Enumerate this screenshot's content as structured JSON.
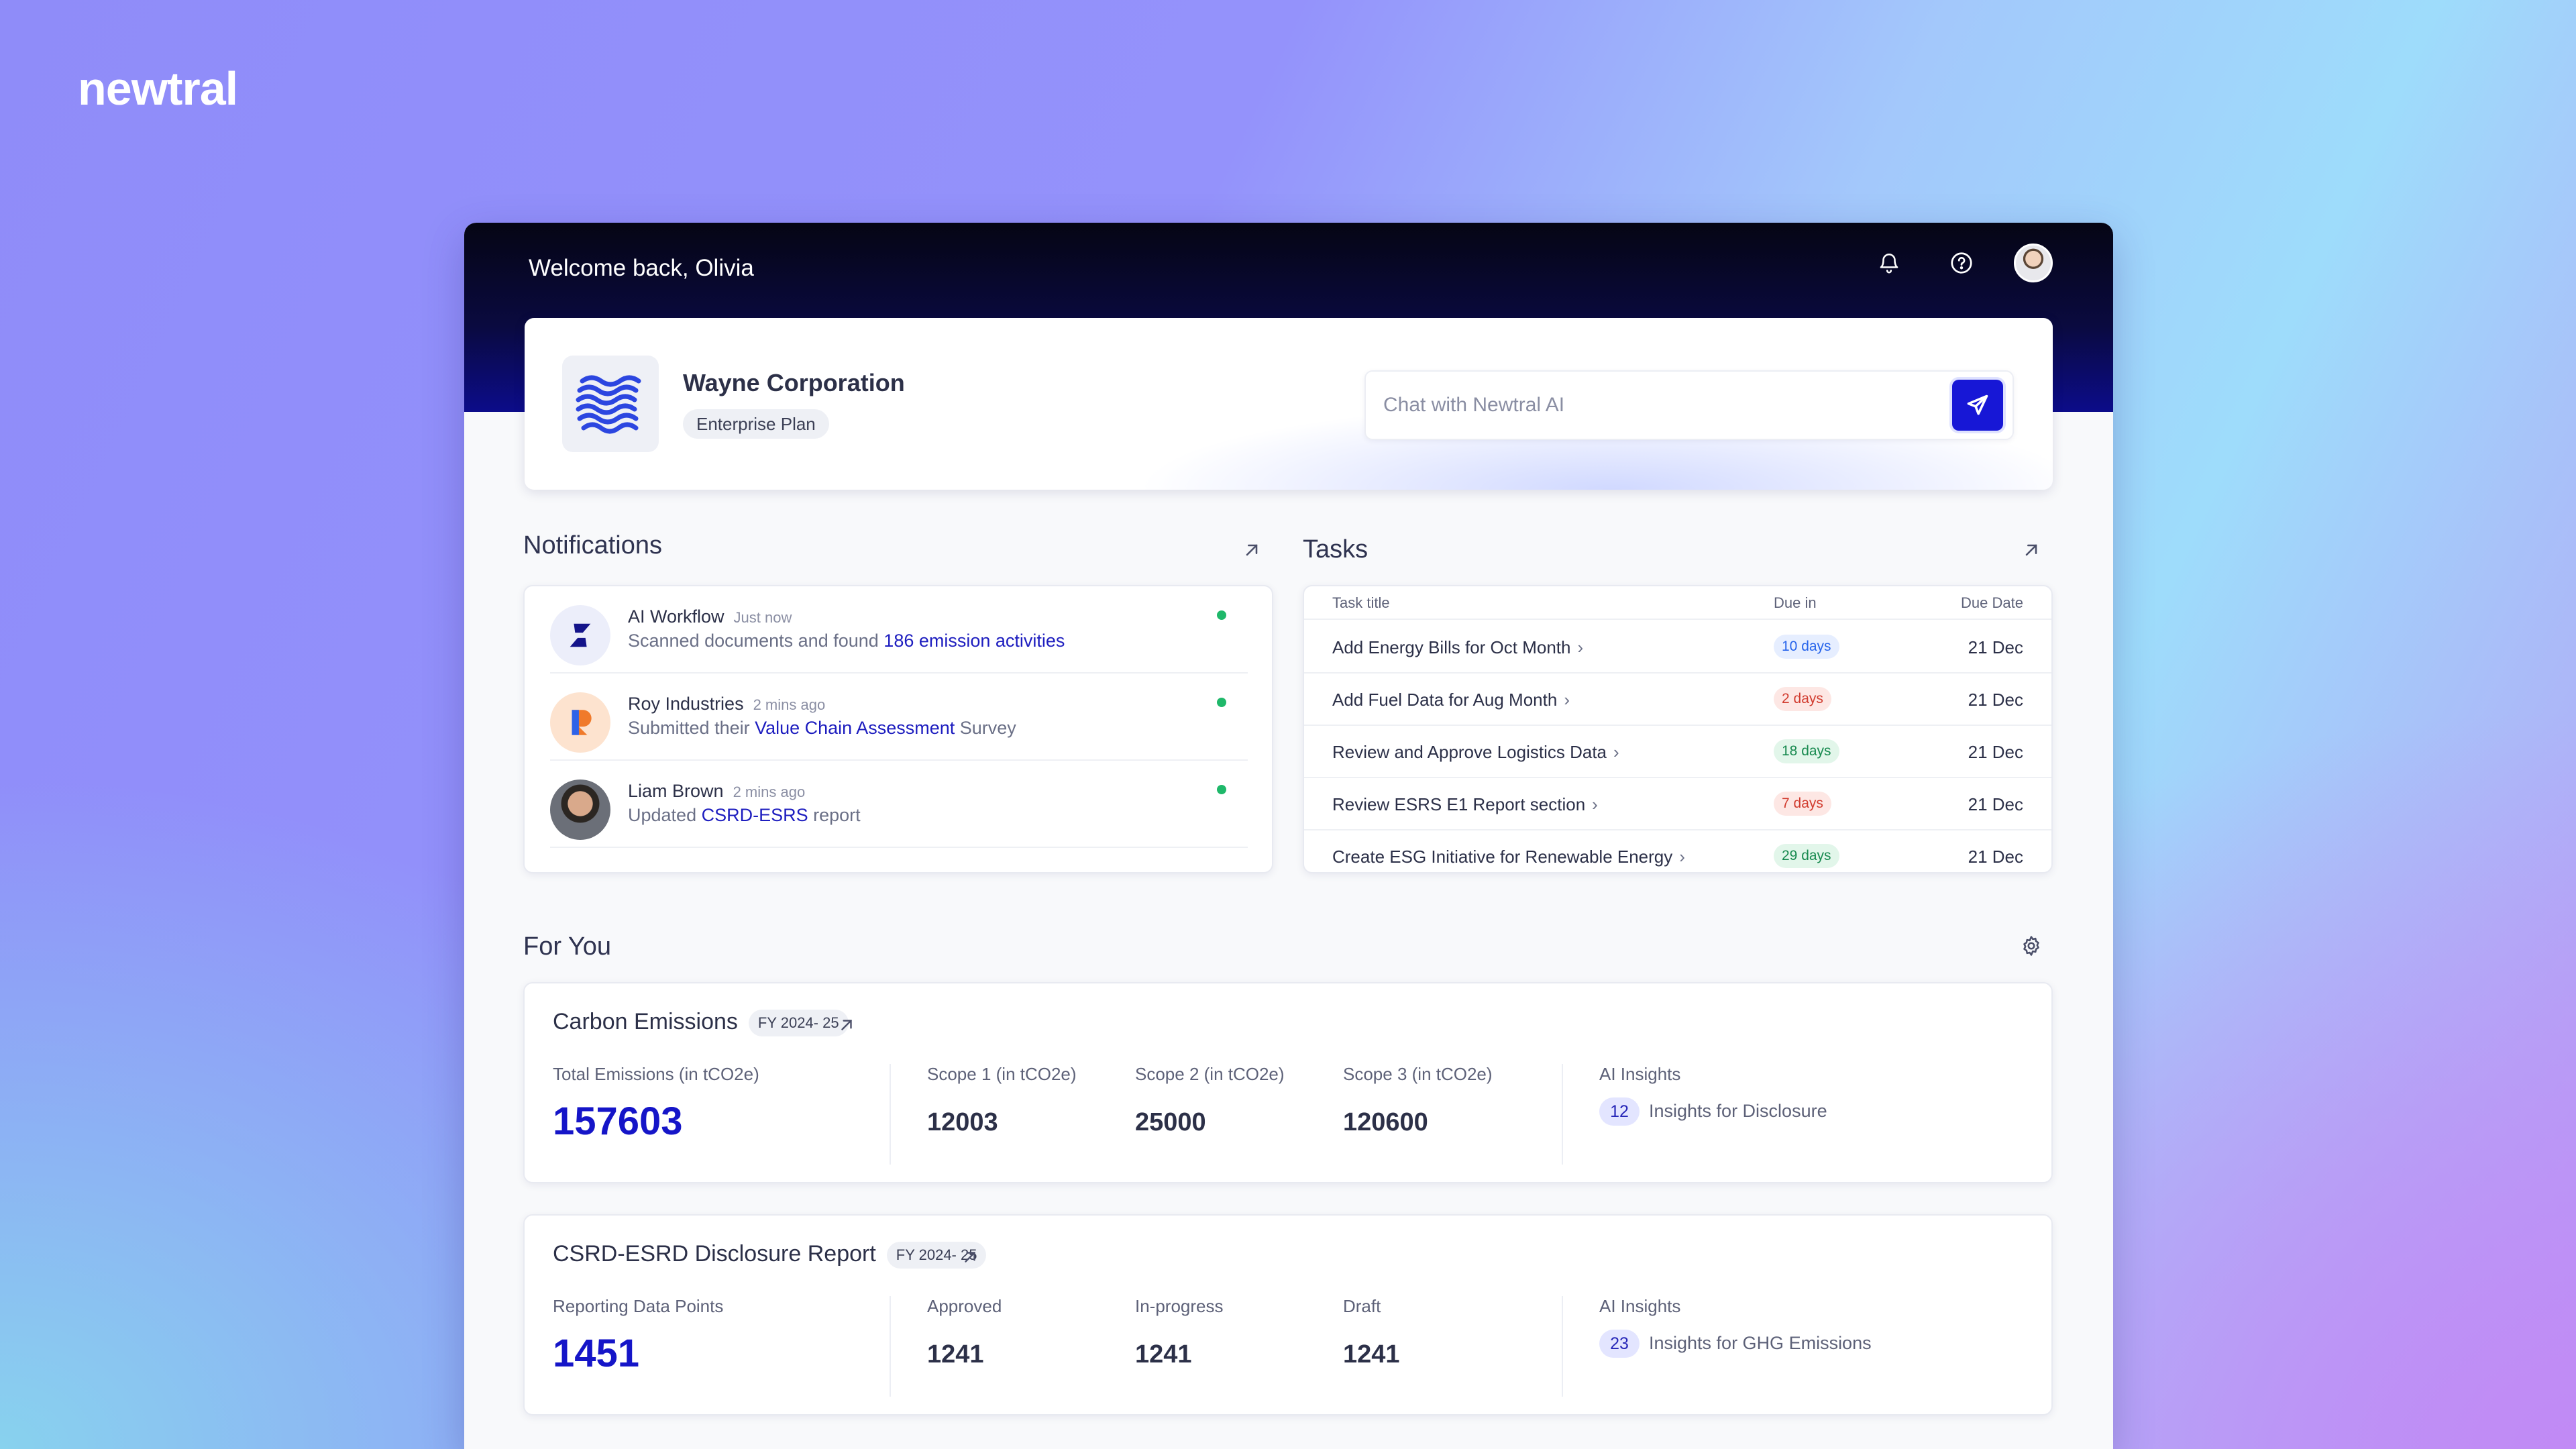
{
  "brand": "newtral",
  "header": {
    "welcome": "Welcome back, Olivia",
    "icons": [
      "bell-icon",
      "help-icon",
      "user-avatar"
    ]
  },
  "company": {
    "name": "Wayne Corporation",
    "plan": "Enterprise Plan"
  },
  "chat": {
    "placeholder": "Chat with Newtral AI"
  },
  "notifications": {
    "title": "Notifications",
    "items": [
      {
        "name": "AI Workflow",
        "time": "Just now",
        "prefix": "Scanned documents and found ",
        "link": "186 emission activities",
        "suffix": ""
      },
      {
        "name": "Roy Industries",
        "time": "2 mins ago",
        "prefix": "Submitted their ",
        "link": "Value Chain Assessment",
        "suffix": " Survey"
      },
      {
        "name": "Liam Brown",
        "time": "2 mins ago",
        "prefix": "Updated ",
        "link": "CSRD-ESRS",
        "suffix": " report"
      }
    ]
  },
  "tasks": {
    "title": "Tasks",
    "columns": {
      "title": "Task title",
      "due_in": "Due in",
      "due_date": "Due Date"
    },
    "rows": [
      {
        "title": "Add Energy Bills for Oct Month",
        "due_in": "10 days",
        "due_date": "21 Dec",
        "status_color": "#2563eb",
        "status_bg": "#e6eeff"
      },
      {
        "title": "Add Fuel Data for Aug Month",
        "due_in": "2 days",
        "due_date": "21 Dec",
        "status_color": "#d13b2e",
        "status_bg": "#fde7e4"
      },
      {
        "title": "Review and Approve Logistics Data",
        "due_in": "18 days",
        "due_date": "21 Dec",
        "status_color": "#16894e",
        "status_bg": "#e2f6ea"
      },
      {
        "title": "Review ESRS E1 Report section",
        "due_in": "7 days",
        "due_date": "21 Dec",
        "status_color": "#d13b2e",
        "status_bg": "#fde7e4"
      },
      {
        "title": "Create ESG Initiative for Renewable Energy",
        "due_in": "29 days",
        "due_date": "21 Dec",
        "status_color": "#16894e",
        "status_bg": "#e2f6ea"
      }
    ]
  },
  "for_you": {
    "title": "For You",
    "cards": [
      {
        "title": "Carbon Emissions",
        "fy": "FY 2024- 25",
        "main_label": "Total Emissions (in tCO2e)",
        "main_value": "157603",
        "stats": [
          {
            "label": "Scope 1 (in tCO2e)",
            "value": "12003"
          },
          {
            "label": "Scope 2 (in tCO2e)",
            "value": "25000"
          },
          {
            "label": "Scope 3 (in tCO2e)",
            "value": "120600"
          }
        ],
        "ai_label": "AI Insights",
        "ai_count": "12",
        "ai_text": "Insights for Disclosure"
      },
      {
        "title": "CSRD-ESRD Disclosure Report",
        "fy": "FY 2024- 25",
        "main_label": "Reporting Data Points",
        "main_value": "1451",
        "stats": [
          {
            "label": "Approved",
            "value": "1241"
          },
          {
            "label": "In-progress",
            "value": "1241"
          },
          {
            "label": "Draft",
            "value": "1241"
          }
        ],
        "ai_label": "AI Insights",
        "ai_count": "23",
        "ai_text": "Insights for GHG Emissions"
      }
    ]
  },
  "colors": {
    "accent": "#1515c8",
    "header_dark": "#050514",
    "online": "#1fb86a"
  }
}
